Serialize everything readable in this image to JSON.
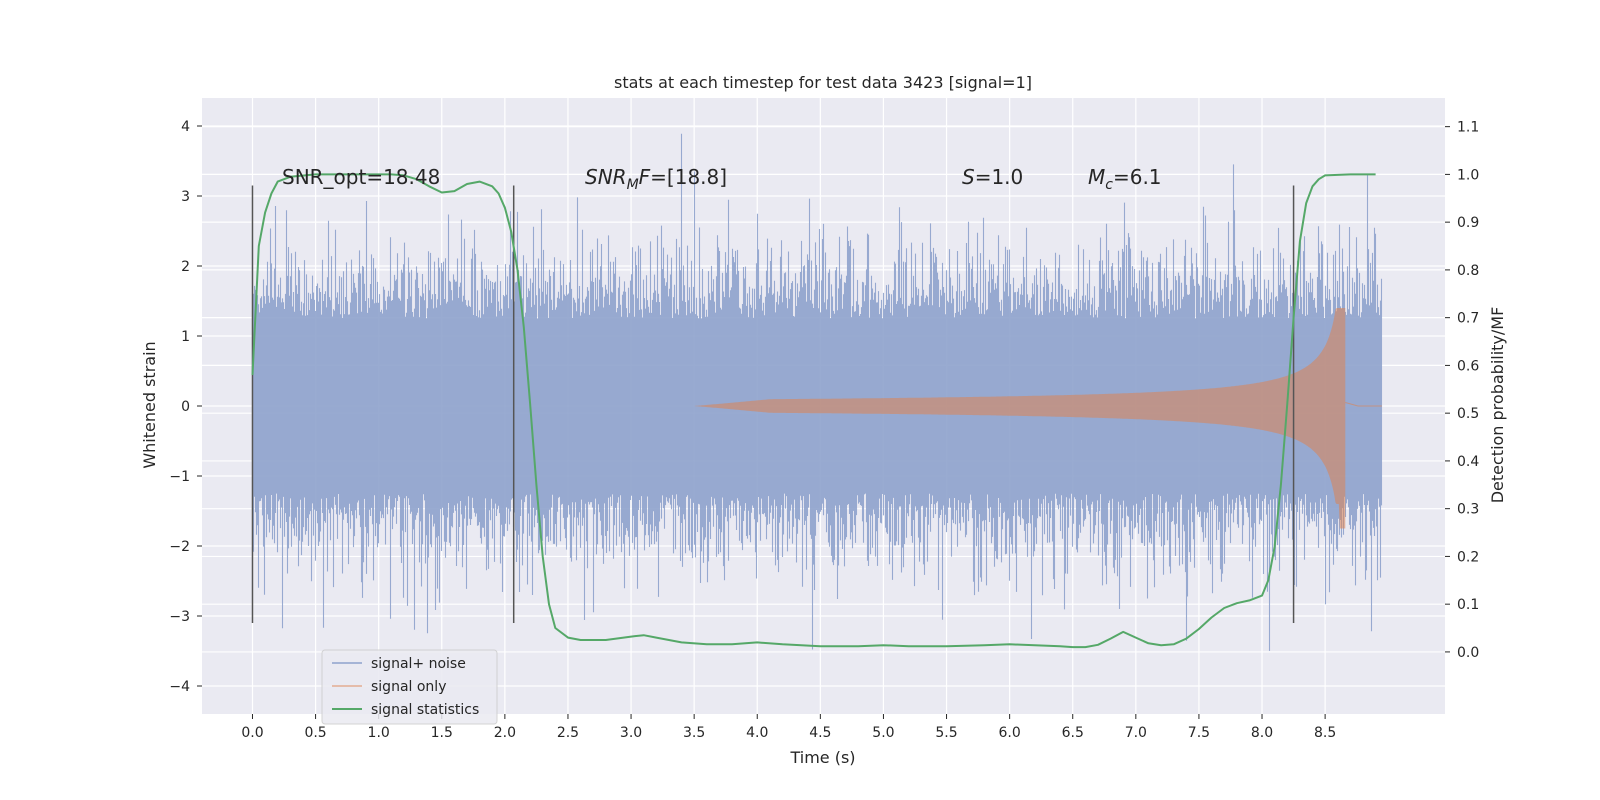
{
  "chart_data": {
    "type": "line",
    "title": "stats at each timestep for test data 3423 [signal=1]",
    "xlabel": "Time (s)",
    "ylabel_left": "Whitened strain",
    "ylabel_right": "Detection probability/MF",
    "xlim": [
      -0.4,
      9.45
    ],
    "ylim_left": [
      -4.4,
      4.4
    ],
    "ylim_right": [
      -0.13,
      1.16
    ],
    "xticks": [
      "0.0",
      "0.5",
      "1.0",
      "1.5",
      "2.0",
      "2.5",
      "3.0",
      "3.5",
      "4.0",
      "4.5",
      "5.0",
      "5.5",
      "6.0",
      "6.5",
      "7.0",
      "7.5",
      "8.0",
      "8.5"
    ],
    "xtick_values": [
      0,
      0.5,
      1,
      1.5,
      2,
      2.5,
      3,
      3.5,
      4,
      4.5,
      5,
      5.5,
      6,
      6.5,
      7,
      7.5,
      8,
      8.5
    ],
    "yticks_left": [
      "4",
      "3",
      "2",
      "1",
      "0",
      "−1",
      "−2",
      "−3",
      "−4"
    ],
    "ytick_left_values": [
      4,
      3,
      2,
      1,
      0,
      -1,
      -2,
      -3,
      -4
    ],
    "yticks_right": [
      "1.1",
      "1.0",
      "0.9",
      "0.8",
      "0.7",
      "0.6",
      "0.5",
      "0.4",
      "0.3",
      "0.2",
      "0.1",
      "0.0"
    ],
    "ytick_right_values": [
      1.1,
      1.0,
      0.9,
      0.8,
      0.7,
      0.6,
      0.5,
      0.4,
      0.3,
      0.2,
      0.1,
      0.0
    ],
    "annotations": [
      {
        "text": "SNR_opt=18.48",
        "x": 0.2,
        "y": 3.3
      },
      {
        "text": "SNRMF=[18.8]",
        "x": 2.6,
        "y": 3.3
      },
      {
        "text": "S=1.0",
        "x": 5.6,
        "y": 3.3
      },
      {
        "text": "Mc=6.1",
        "x": 6.6,
        "y": 3.3
      }
    ],
    "vertical_lines": [
      {
        "x": 0.0,
        "ymin": -3.1,
        "ymax": 3.15
      },
      {
        "x": 2.07,
        "ymin": -3.1,
        "ymax": 3.15
      },
      {
        "x": 8.25,
        "ymin": -3.1,
        "ymax": 3.15
      }
    ],
    "legend": {
      "placement": "lower-left",
      "entries": [
        "signal+ noise",
        "signal only",
        "signal statistics"
      ]
    },
    "series": [
      {
        "name": "signal+ noise",
        "color": "#8ea2cc",
        "t_start": 0.0,
        "t_end": 8.95,
        "typical_amplitude": 1.6,
        "peak_range": [
          -4.0,
          4.0
        ]
      },
      {
        "name": "signal only",
        "color": "#dd8452",
        "t_start": 3.5,
        "t_merger": 8.66,
        "peak_amplitude": 1.4
      },
      {
        "name": "signal statistics",
        "color": "#55a868",
        "x": [
          0.0,
          0.05,
          0.1,
          0.15,
          0.2,
          0.3,
          0.5,
          0.8,
          1.0,
          1.1,
          1.2,
          1.3,
          1.4,
          1.5,
          1.6,
          1.7,
          1.8,
          1.9,
          1.95,
          2.0,
          2.05,
          2.1,
          2.15,
          2.2,
          2.25,
          2.3,
          2.35,
          2.4,
          2.5,
          2.6,
          2.8,
          3.0,
          3.1,
          3.2,
          3.4,
          3.6,
          3.8,
          4.0,
          4.2,
          4.5,
          4.8,
          5.0,
          5.2,
          5.5,
          5.8,
          6.0,
          6.2,
          6.4,
          6.5,
          6.6,
          6.7,
          6.8,
          6.9,
          7.0,
          7.1,
          7.2,
          7.3,
          7.4,
          7.5,
          7.6,
          7.7,
          7.8,
          7.9,
          8.0,
          8.05,
          8.1,
          8.15,
          8.2,
          8.25,
          8.3,
          8.35,
          8.4,
          8.45,
          8.5,
          8.7,
          8.9
        ],
        "values": [
          0.58,
          0.85,
          0.92,
          0.96,
          0.985,
          0.995,
          1.0,
          1.0,
          1.0,
          1.0,
          0.998,
          0.99,
          0.975,
          0.962,
          0.965,
          0.98,
          0.985,
          0.975,
          0.96,
          0.93,
          0.88,
          0.8,
          0.68,
          0.52,
          0.35,
          0.2,
          0.1,
          0.05,
          0.03,
          0.025,
          0.025,
          0.032,
          0.035,
          0.03,
          0.02,
          0.016,
          0.016,
          0.02,
          0.016,
          0.012,
          0.012,
          0.014,
          0.012,
          0.012,
          0.014,
          0.016,
          0.014,
          0.012,
          0.01,
          0.01,
          0.015,
          0.028,
          0.042,
          0.03,
          0.018,
          0.014,
          0.016,
          0.028,
          0.048,
          0.072,
          0.092,
          0.102,
          0.108,
          0.118,
          0.15,
          0.22,
          0.35,
          0.52,
          0.7,
          0.86,
          0.94,
          0.975,
          0.99,
          0.998,
          1.0,
          1.0
        ]
      }
    ]
  }
}
